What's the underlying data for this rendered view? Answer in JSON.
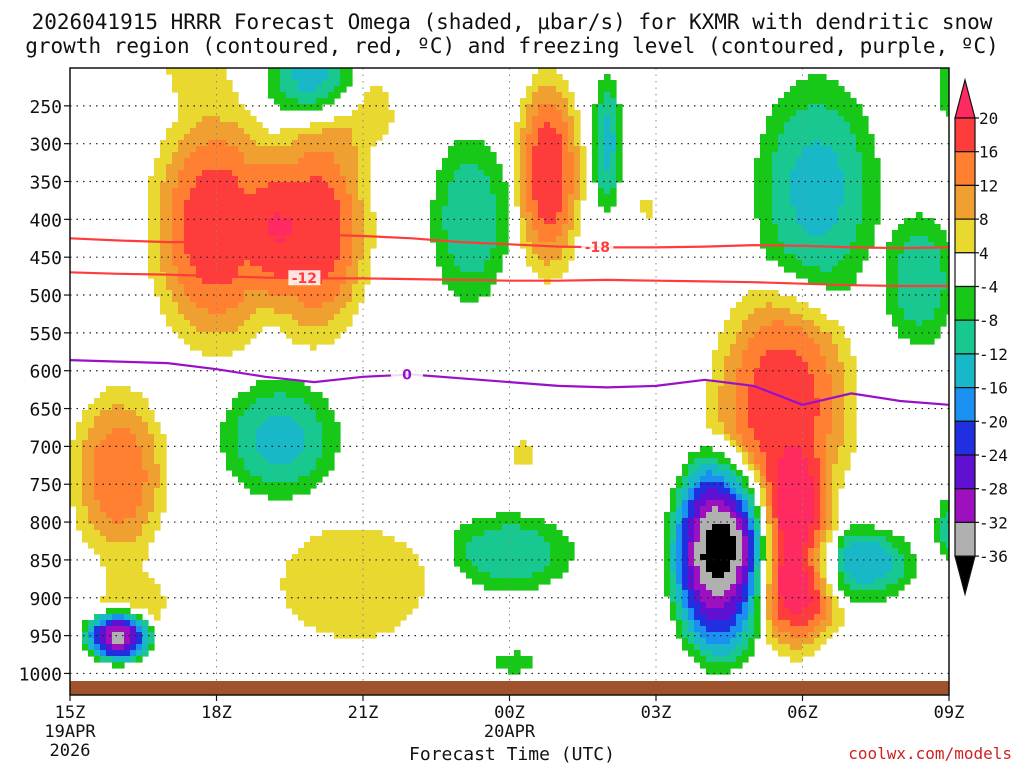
{
  "chart_data": {
    "type": "heatmap",
    "title_line1": "2026041915 HRRR Forecast Omega (shaded, μbar/s) for KXMR with dendritic snow",
    "title_line2": "growth region (contoured, red, ºC) and freezing level (contoured, purple, ºC)",
    "xlabel": "Forecast Time (UTC)",
    "x_ticks": [
      {
        "hour": 0,
        "label": "15Z",
        "sub1": "19APR",
        "sub2": "2026"
      },
      {
        "hour": 3,
        "label": "18Z"
      },
      {
        "hour": 6,
        "label": "21Z"
      },
      {
        "hour": 9,
        "label": "00Z",
        "sub1": "20APR"
      },
      {
        "hour": 12,
        "label": "03Z"
      },
      {
        "hour": 15,
        "label": "06Z"
      },
      {
        "hour": 18,
        "label": "09Z"
      }
    ],
    "xlim": [
      0,
      18
    ],
    "y_pressure_levels": [
      250,
      300,
      350,
      400,
      450,
      500,
      550,
      600,
      650,
      700,
      750,
      800,
      850,
      900,
      950,
      1000
    ],
    "ylim": [
      200,
      1010
    ],
    "colorbar": {
      "labels": [
        20,
        16,
        12,
        8,
        4,
        -4,
        -8,
        -12,
        -16,
        -20,
        -24,
        -28,
        -32,
        -36
      ],
      "colors": [
        "#ff2a60",
        "#ff3c3c",
        "#ff8030",
        "#f0a030",
        "#e8d830",
        "#ffffff",
        "#18c818",
        "#18c890",
        "#18b8c8",
        "#1a90f0",
        "#2030e0",
        "#6010d0",
        "#9c10c0",
        "#b0b0b0",
        "#000000"
      ]
    },
    "contours": [
      {
        "label": "-18",
        "color": "#ff3c3c",
        "kind": "dendritic",
        "x": [
          0,
          1,
          2,
          3,
          4,
          5,
          6,
          7,
          8,
          9,
          10,
          11,
          12,
          13,
          14,
          15,
          16,
          17,
          18
        ],
        "y": [
          425,
          428,
          430,
          430,
          425,
          420,
          422,
          425,
          430,
          433,
          436,
          437,
          437,
          436,
          434,
          435,
          437,
          438,
          437
        ]
      },
      {
        "label": "-12",
        "color": "#ff3c3c",
        "kind": "dendritic",
        "x": [
          0,
          1,
          2,
          3,
          4,
          5,
          6,
          7,
          8,
          9,
          10,
          11,
          12,
          13,
          14,
          15,
          16,
          17,
          18
        ],
        "y": [
          470,
          472,
          473,
          475,
          477,
          478,
          478,
          479,
          480,
          481,
          481,
          480,
          481,
          482,
          483,
          485,
          487,
          488,
          488
        ]
      },
      {
        "label": "0",
        "color": "#9a10c8",
        "kind": "freezing",
        "x": [
          0,
          1,
          2,
          3,
          4,
          5,
          6,
          7,
          8,
          9,
          10,
          11,
          12,
          13,
          14,
          15,
          16,
          17,
          18
        ],
        "y": [
          586,
          588,
          590,
          598,
          608,
          615,
          608,
          605,
          610,
          615,
          620,
          622,
          620,
          612,
          620,
          645,
          630,
          640,
          645
        ]
      }
    ],
    "omega_blobs": [
      {
        "t": 3.0,
        "p": 410,
        "rt": 1.8,
        "rp": 210,
        "peak": 20
      },
      {
        "t": 5.0,
        "p": 415,
        "rt": 1.5,
        "rp": 190,
        "peak": 20
      },
      {
        "t": 1.0,
        "p": 738,
        "rt": 1.3,
        "rp": 150,
        "peak": 16
      },
      {
        "t": 1.3,
        "p": 905,
        "rt": 1.3,
        "rp": 75,
        "peak": 6
      },
      {
        "t": 9.8,
        "p": 340,
        "rt": 0.9,
        "rp": 175,
        "peak": 20
      },
      {
        "t": 14.6,
        "p": 645,
        "rt": 1.9,
        "rp": 205,
        "peak": 20
      },
      {
        "t": 14.9,
        "p": 845,
        "rt": 1.1,
        "rp": 170,
        "peak": 20
      },
      {
        "t": 5.8,
        "p": 880,
        "rt": 2.6,
        "rp": 130,
        "peak": 7
      },
      {
        "t": 15.0,
        "p": 900,
        "rt": 2.8,
        "rp": 80,
        "peak": 6
      },
      {
        "t": 9.3,
        "p": 710,
        "rt": 0.6,
        "rp": 40,
        "peak": 5
      },
      {
        "t": 11.8,
        "p": 385,
        "rt": 0.2,
        "rp": 40,
        "peak": 5
      },
      {
        "t": 2.6,
        "p": 205,
        "rt": 1.2,
        "rp": 70,
        "peak": 6
      },
      {
        "t": 6.0,
        "p": 260,
        "rt": 1.2,
        "rp": 90,
        "peak": 6
      },
      {
        "t": 1.0,
        "p": 950,
        "rt": 0.9,
        "rp": 45,
        "peak": -36
      },
      {
        "t": 4.3,
        "p": 690,
        "rt": 1.6,
        "rp": 105,
        "peak": -14
      },
      {
        "t": 8.2,
        "p": 400,
        "rt": 1.1,
        "rp": 150,
        "peak": -12
      },
      {
        "t": 11.0,
        "p": 300,
        "rt": 0.4,
        "rp": 120,
        "peak": -14
      },
      {
        "t": 5.0,
        "p": 210,
        "rt": 1.3,
        "rp": 80,
        "peak": -14
      },
      {
        "t": 15.3,
        "p": 360,
        "rt": 1.7,
        "rp": 200,
        "peak": -14
      },
      {
        "t": 17.4,
        "p": 480,
        "rt": 1.0,
        "rp": 120,
        "peak": -12
      },
      {
        "t": 13.3,
        "p": 845,
        "rt": 1.3,
        "rp": 175,
        "peak": -40
      },
      {
        "t": 16.2,
        "p": 860,
        "rt": 1.4,
        "rp": 70,
        "peak": -18
      },
      {
        "t": 9.0,
        "p": 840,
        "rt": 1.8,
        "rp": 70,
        "peak": -12
      },
      {
        "t": 9.1,
        "p": 985,
        "rt": 0.8,
        "rp": 25,
        "peak": -6
      },
      {
        "t": 18.0,
        "p": 810,
        "rt": 0.4,
        "rp": 60,
        "peak": -10
      },
      {
        "t": 18.0,
        "p": 230,
        "rt": 0.4,
        "rp": 50,
        "peak": -8
      }
    ]
  },
  "credit": "coolwx.com/models"
}
